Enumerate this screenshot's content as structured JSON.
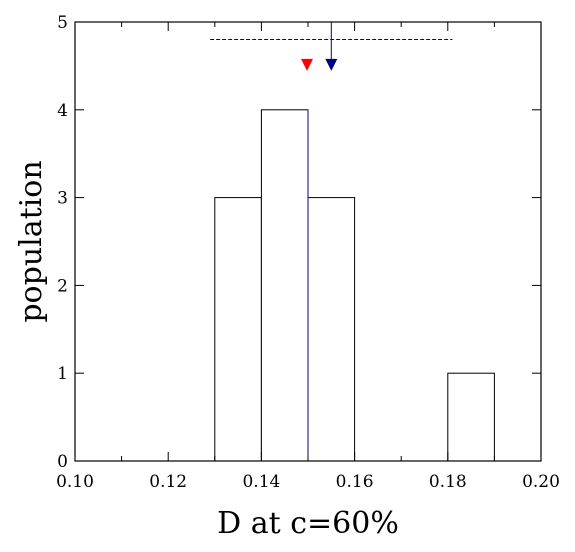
{
  "chart_data": {
    "type": "bar",
    "subtype": "histogram",
    "bins": [
      {
        "x0": 0.13,
        "x1": 0.14,
        "count": 3
      },
      {
        "x0": 0.14,
        "x1": 0.15,
        "count": 4
      },
      {
        "x0": 0.15,
        "x1": 0.16,
        "count": 3
      },
      {
        "x0": 0.18,
        "x1": 0.19,
        "count": 1
      }
    ],
    "xlabel": "D at c=60%",
    "ylabel": "population",
    "xlim": [
      0.1,
      0.2
    ],
    "ylim": [
      0,
      5
    ],
    "xticks": [
      "0.10",
      "0.12",
      "0.14",
      "0.16",
      "0.18",
      "0.20"
    ],
    "yticks": [
      "0",
      "1",
      "2",
      "3",
      "4",
      "5"
    ],
    "grid": false,
    "annotations": {
      "mean_marker": {
        "x": 0.155,
        "y": 4.5,
        "color": "#000080"
      },
      "mean_line_x": 0.155,
      "median_marker": {
        "x": 0.15,
        "y": 4.5,
        "color": "#ff0000"
      },
      "median_line_x": 0.15,
      "range_line": {
        "x0": 0.129,
        "x1": 0.181,
        "y": 4.8,
        "color": "#00008b",
        "style": "dashed"
      }
    }
  }
}
